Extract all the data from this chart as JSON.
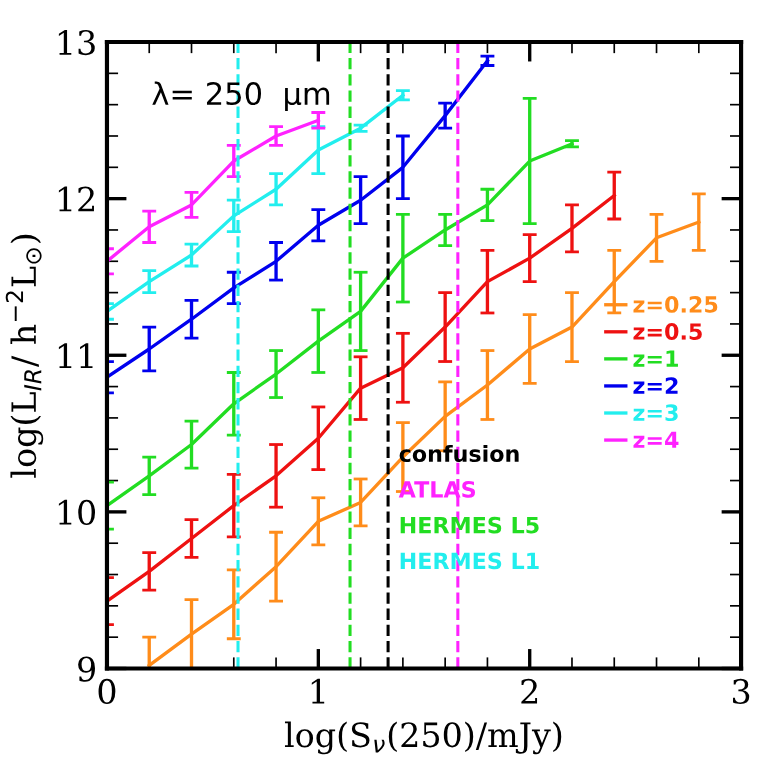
{
  "chart_data": {
    "type": "line",
    "xlabel": "log(S$_{ν}$(250)/mJy)",
    "ylabel": "log(L$_{IR}$/ h$^{−2}$L$_{⊙}$)",
    "annotations": [
      "λ= 250  μm"
    ],
    "xlim": [
      0,
      3
    ],
    "ylim": [
      9,
      13
    ],
    "xticks": [
      0,
      1,
      2,
      3
    ],
    "yticks": [
      9,
      10,
      11,
      12,
      13
    ],
    "grid": false,
    "legend": "right",
    "marker": "none",
    "line_style": "solid",
    "series": [
      {
        "name": "z=0.25",
        "color": "#ff8c1a",
        "x": [
          0.2,
          0.4,
          0.6,
          0.8,
          1.0,
          1.2,
          1.4,
          1.6,
          1.8,
          2.0,
          2.2,
          2.4,
          2.6,
          2.8
        ],
        "values": [
          9.02,
          9.22,
          9.41,
          9.65,
          9.94,
          10.06,
          10.35,
          10.61,
          10.81,
          11.04,
          11.18,
          11.47,
          11.75,
          11.85
        ],
        "errors": [
          0.18,
          0.22,
          0.22,
          0.22,
          0.15,
          0.15,
          0.22,
          0.22,
          0.22,
          0.22,
          0.22,
          0.2,
          0.15,
          0.18
        ]
      },
      {
        "name": "z=0.5",
        "color": "#ee1111",
        "x": [
          0,
          0.2,
          0.4,
          0.6,
          0.8,
          1.0,
          1.2,
          1.4,
          1.6,
          1.8,
          2.0,
          2.2,
          2.4
        ],
        "values": [
          9.43,
          9.62,
          9.83,
          10.04,
          10.23,
          10.47,
          10.79,
          10.92,
          11.18,
          11.47,
          11.62,
          11.81,
          12.02
        ],
        "errors": [
          0.15,
          0.12,
          0.12,
          0.2,
          0.2,
          0.2,
          0.2,
          0.22,
          0.22,
          0.2,
          0.15,
          0.15,
          0.15
        ]
      },
      {
        "name": "z=1",
        "color": "#22dd22",
        "x": [
          0,
          0.2,
          0.4,
          0.6,
          0.8,
          1.0,
          1.2,
          1.4,
          1.6,
          1.8,
          2.0,
          2.2
        ],
        "values": [
          10.04,
          10.23,
          10.43,
          10.69,
          10.88,
          11.09,
          11.28,
          11.62,
          11.8,
          11.96,
          12.24,
          12.35
        ],
        "errors": [
          0.15,
          0.12,
          0.15,
          0.2,
          0.15,
          0.2,
          0.25,
          0.28,
          0.1,
          0.1,
          0.4,
          0.02
        ]
      },
      {
        "name": "z=2",
        "color": "#0000ee",
        "x": [
          0,
          0.2,
          0.4,
          0.6,
          0.8,
          1.0,
          1.2,
          1.4,
          1.6,
          1.8
        ],
        "values": [
          10.86,
          11.04,
          11.23,
          11.43,
          11.6,
          11.83,
          11.99,
          12.2,
          12.53,
          12.88
        ],
        "errors": [
          0.1,
          0.14,
          0.12,
          0.1,
          0.12,
          0.1,
          0.15,
          0.2,
          0.08,
          0.03
        ]
      },
      {
        "name": "z=3",
        "color": "#22eeee",
        "x": [
          0,
          0.2,
          0.4,
          0.6,
          0.8,
          1.0,
          1.2,
          1.4
        ],
        "values": [
          11.28,
          11.47,
          11.64,
          11.89,
          12.06,
          12.31,
          12.45,
          12.66
        ],
        "errors": [
          0.05,
          0.07,
          0.07,
          0.1,
          0.1,
          0.15,
          0.02,
          0.03
        ]
      },
      {
        "name": "z=4",
        "color": "#ff22ff",
        "x": [
          0,
          0.2,
          0.4,
          0.6,
          0.8,
          1.0
        ],
        "values": [
          11.6,
          11.82,
          11.96,
          12.24,
          12.4,
          12.5
        ],
        "errors": [
          0.08,
          0.1,
          0.08,
          0.1,
          0.06,
          0.05
        ]
      }
    ],
    "ref_lines": [
      {
        "axis": "x",
        "value": 1.33,
        "label": "confusion",
        "color": "#000000",
        "line_style": "dashed"
      },
      {
        "axis": "x",
        "value": 1.66,
        "label": "ATLAS",
        "color": "#ff22ff",
        "line_style": "dashed"
      },
      {
        "axis": "x",
        "value": 1.15,
        "label": "HERMES L5",
        "color": "#22dd22",
        "line_style": "dashed"
      },
      {
        "axis": "x",
        "value": 0.62,
        "label": "HERMES L1",
        "color": "#22eeee",
        "line_style": "dashed"
      }
    ]
  }
}
